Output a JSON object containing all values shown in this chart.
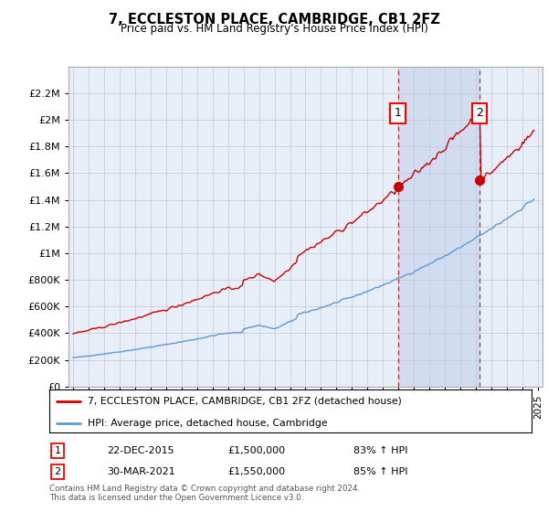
{
  "title": "7, ECCLESTON PLACE, CAMBRIDGE, CB1 2FZ",
  "subtitle": "Price paid vs. HM Land Registry's House Price Index (HPI)",
  "ylim": [
    0,
    2400000
  ],
  "yticks": [
    0,
    200000,
    400000,
    600000,
    800000,
    1000000,
    1200000,
    1400000,
    1600000,
    1800000,
    2000000,
    2200000
  ],
  "ytick_labels": [
    "£0",
    "£200K",
    "£400K",
    "£600K",
    "£800K",
    "£1M",
    "£1.2M",
    "£1.4M",
    "£1.6M",
    "£1.8M",
    "£2M",
    "£2.2M"
  ],
  "hpi_color": "#5b9bd5",
  "price_color": "#cc0000",
  "bg_color": "#e8eef8",
  "grid_color": "#c0c8d8",
  "legend_label_price": "7, ECCLESTON PLACE, CAMBRIDGE, CB1 2FZ (detached house)",
  "legend_label_hpi": "HPI: Average price, detached house, Cambridge",
  "ann1_x": 2015.97,
  "ann1_y": 1500000,
  "ann2_x": 2021.24,
  "ann2_y": 1550000,
  "transaction1": {
    "date": "22-DEC-2015",
    "price": "£1,500,000",
    "pct": "83% ↑ HPI"
  },
  "transaction2": {
    "date": "30-MAR-2021",
    "price": "£1,550,000",
    "pct": "85% ↑ HPI"
  },
  "footer": "Contains HM Land Registry data © Crown copyright and database right 2024.\nThis data is licensed under the Open Government Licence v3.0.",
  "xlim": [
    1994.7,
    2025.3
  ]
}
